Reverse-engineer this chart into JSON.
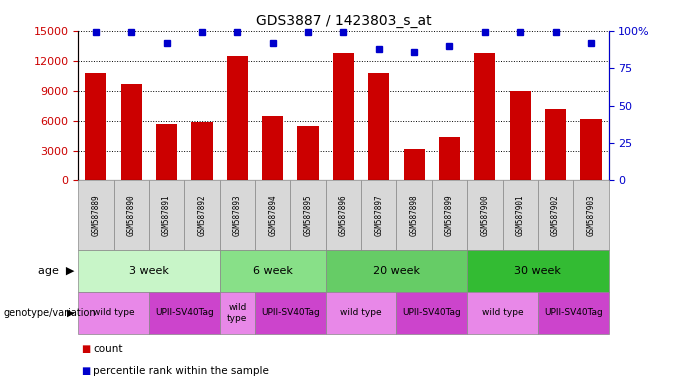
{
  "title": "GDS3887 / 1423803_s_at",
  "samples": [
    "GSM587889",
    "GSM587890",
    "GSM587891",
    "GSM587892",
    "GSM587893",
    "GSM587894",
    "GSM587895",
    "GSM587896",
    "GSM587897",
    "GSM587898",
    "GSM587899",
    "GSM587900",
    "GSM587901",
    "GSM587902",
    "GSM587903"
  ],
  "counts": [
    10800,
    9700,
    5700,
    5900,
    12500,
    6500,
    5500,
    12800,
    10800,
    3200,
    4400,
    12800,
    9000,
    7200,
    6200
  ],
  "percentiles": [
    99,
    99,
    92,
    99,
    99,
    92,
    99,
    99,
    88,
    86,
    90,
    99,
    99,
    99,
    92
  ],
  "ylim_left": [
    0,
    15000
  ],
  "ylim_right": [
    0,
    100
  ],
  "yticks_left": [
    0,
    3000,
    6000,
    9000,
    12000,
    15000
  ],
  "yticks_right": [
    0,
    25,
    50,
    75,
    100
  ],
  "bar_color": "#cc0000",
  "dot_color": "#0000cc",
  "age_groups": [
    {
      "label": "3 week",
      "start": 0,
      "end": 4,
      "color": "#c8f5c8"
    },
    {
      "label": "6 week",
      "start": 4,
      "end": 7,
      "color": "#88e088"
    },
    {
      "label": "20 week",
      "start": 7,
      "end": 11,
      "color": "#66cc66"
    },
    {
      "label": "30 week",
      "start": 11,
      "end": 15,
      "color": "#33bb33"
    }
  ],
  "genotype_groups": [
    {
      "label": "wild type",
      "start": 0,
      "end": 2,
      "color": "#e888e8"
    },
    {
      "label": "UPII-SV40Tag",
      "start": 2,
      "end": 4,
      "color": "#cc44cc"
    },
    {
      "label": "wild\ntype",
      "start": 4,
      "end": 5,
      "color": "#e888e8"
    },
    {
      "label": "UPII-SV40Tag",
      "start": 5,
      "end": 7,
      "color": "#cc44cc"
    },
    {
      "label": "wild type",
      "start": 7,
      "end": 9,
      "color": "#e888e8"
    },
    {
      "label": "UPII-SV40Tag",
      "start": 9,
      "end": 11,
      "color": "#cc44cc"
    },
    {
      "label": "wild type",
      "start": 11,
      "end": 13,
      "color": "#e888e8"
    },
    {
      "label": "UPII-SV40Tag",
      "start": 13,
      "end": 15,
      "color": "#cc44cc"
    }
  ]
}
